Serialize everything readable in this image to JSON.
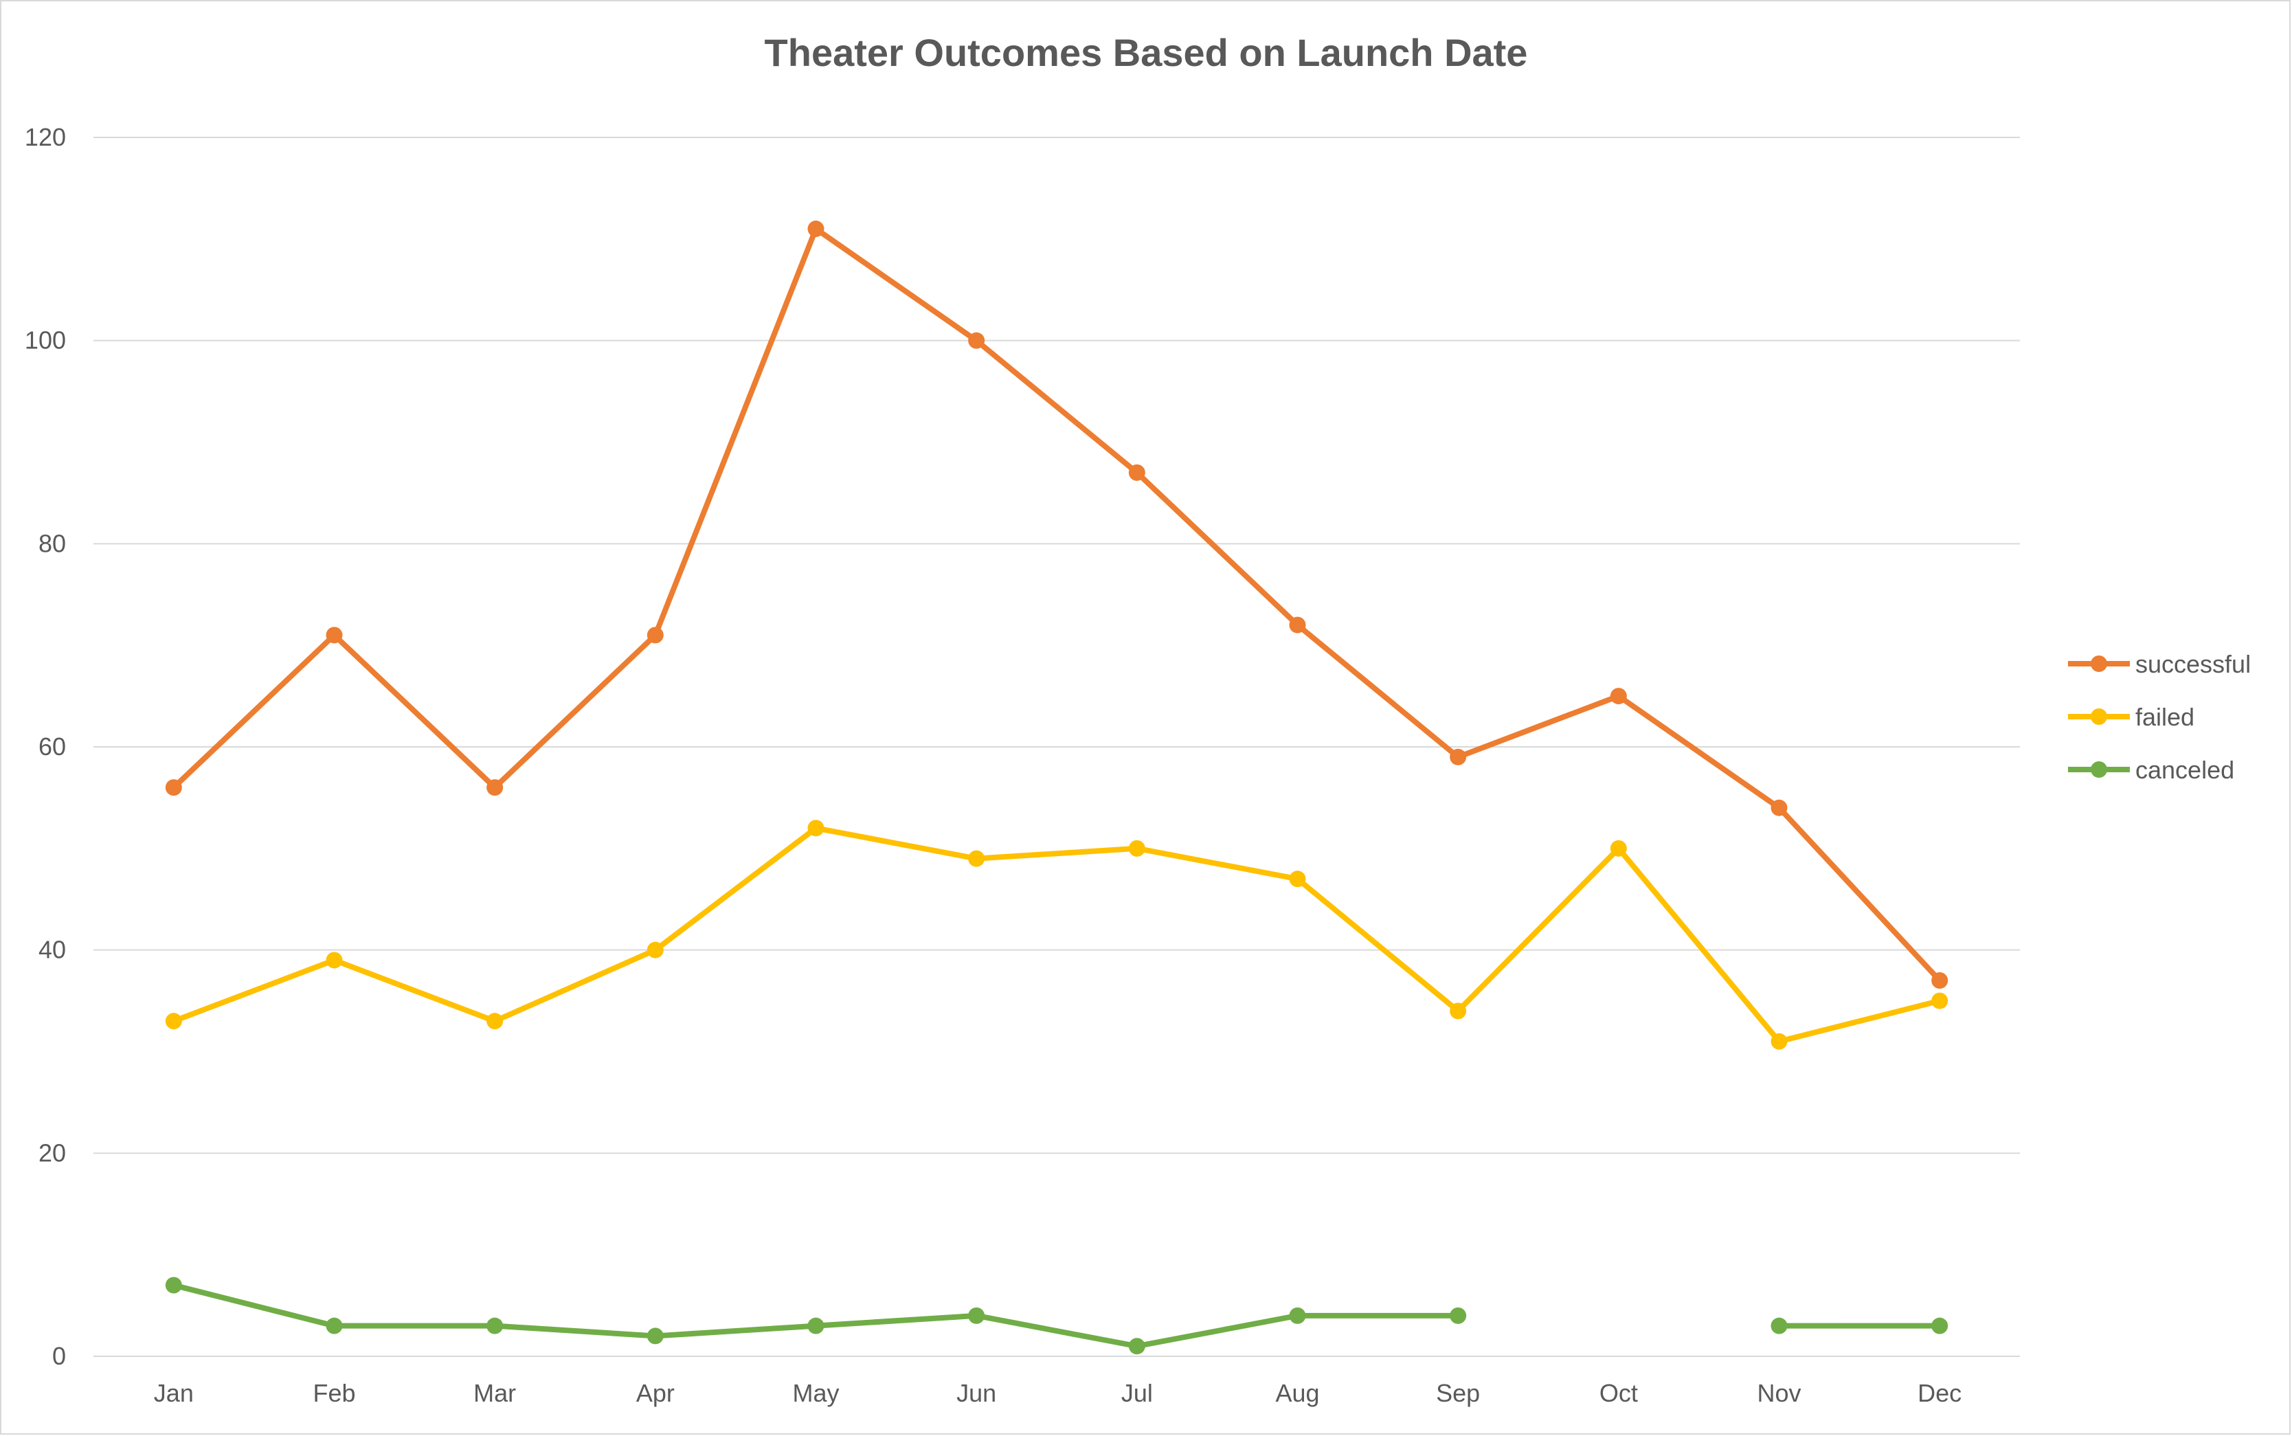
{
  "chart_data": {
    "type": "line",
    "title": "Theater Outcomes Based on Launch Date",
    "xlabel": "",
    "ylabel": "",
    "categories": [
      "Jan",
      "Feb",
      "Mar",
      "Apr",
      "May",
      "Jun",
      "Jul",
      "Aug",
      "Sep",
      "Oct",
      "Nov",
      "Dec"
    ],
    "ylim": [
      0,
      120
    ],
    "yticks": [
      "0",
      "20",
      "40",
      "60",
      "80",
      "100",
      "120"
    ],
    "grid": true,
    "legend_position": "right",
    "series": [
      {
        "name": "successful",
        "color": "#ED7D31",
        "values": [
          56,
          71,
          56,
          71,
          111,
          100,
          87,
          72,
          59,
          65,
          54,
          37
        ]
      },
      {
        "name": "failed",
        "color": "#FFC000",
        "values": [
          33,
          39,
          33,
          40,
          52,
          49,
          50,
          47,
          34,
          50,
          31,
          35
        ]
      },
      {
        "name": "canceled",
        "color": "#70AD47",
        "values": [
          7,
          3,
          3,
          2,
          3,
          4,
          1,
          4,
          4,
          null,
          3,
          3
        ]
      }
    ]
  }
}
